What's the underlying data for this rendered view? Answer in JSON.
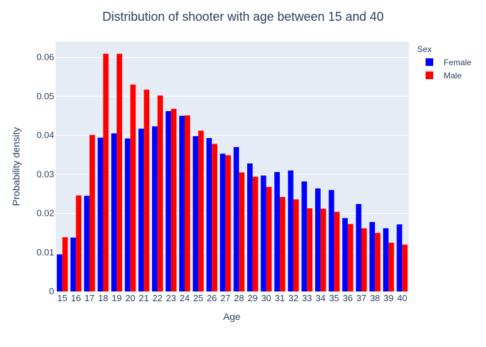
{
  "chart_data": {
    "type": "bar",
    "title": "Distribution of shooter with age between 15 and 40",
    "xlabel": "Age",
    "ylabel": "Probability density",
    "ylim": [
      0,
      0.064
    ],
    "yticks": [
      0,
      0.01,
      0.02,
      0.03,
      0.04,
      0.05,
      0.06
    ],
    "yticklabels": [
      "0",
      "0.01",
      "0.02",
      "0.03",
      "0.04",
      "0.05",
      "0.06"
    ],
    "grid": true,
    "legend": {
      "title": "Sex",
      "position": "top-right"
    },
    "categories": [
      "15",
      "16",
      "17",
      "18",
      "19",
      "20",
      "21",
      "22",
      "23",
      "24",
      "25",
      "26",
      "27",
      "28",
      "29",
      "30",
      "31",
      "32",
      "33",
      "34",
      "35",
      "36",
      "37",
      "38",
      "39",
      "40"
    ],
    "series": [
      {
        "name": "Female",
        "color": "#0000ff",
        "values": [
          0.0095,
          0.0138,
          0.0245,
          0.0394,
          0.0405,
          0.0392,
          0.0417,
          0.0423,
          0.0462,
          0.045,
          0.0398,
          0.0393,
          0.0353,
          0.037,
          0.0328,
          0.0297,
          0.0306,
          0.031,
          0.0282,
          0.0264,
          0.026,
          0.0188,
          0.0224,
          0.0178,
          0.0162,
          0.0172
        ]
      },
      {
        "name": "Male",
        "color": "#ff0000",
        "values": [
          0.0139,
          0.0246,
          0.0401,
          0.0609,
          0.0609,
          0.053,
          0.0517,
          0.0502,
          0.0468,
          0.0451,
          0.0412,
          0.0378,
          0.0349,
          0.0305,
          0.0294,
          0.0268,
          0.0242,
          0.0236,
          0.0213,
          0.0212,
          0.0204,
          0.0173,
          0.0162,
          0.015,
          0.0125,
          0.012
        ]
      }
    ]
  }
}
